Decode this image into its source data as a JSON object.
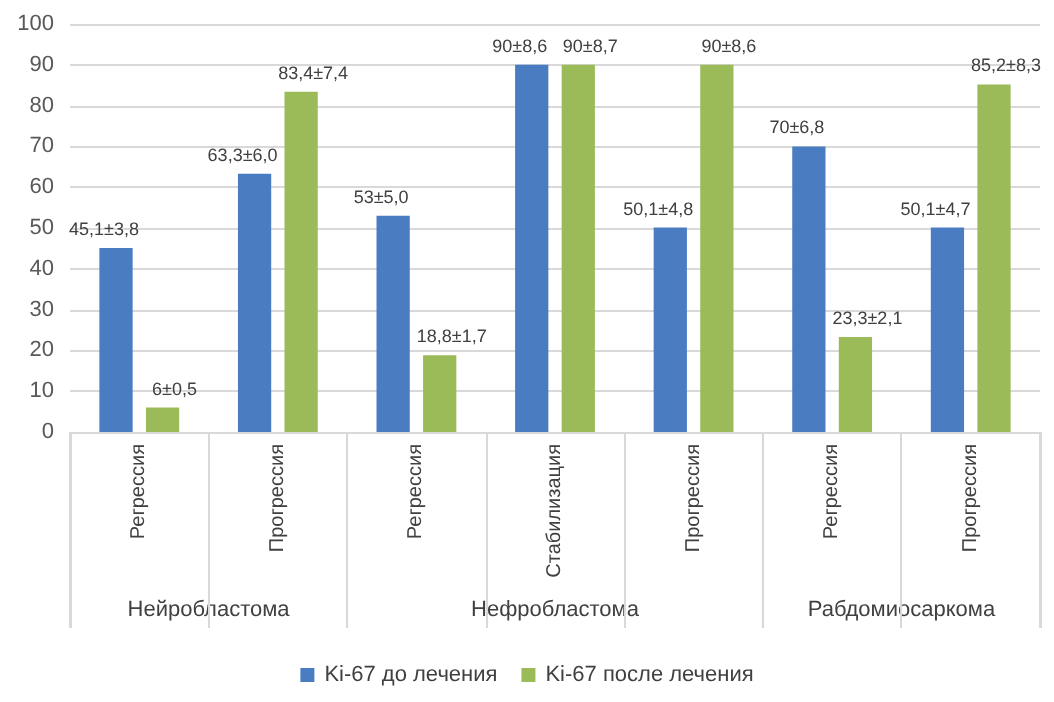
{
  "chart_data": {
    "type": "bar",
    "categories": [
      "Регрессия",
      "Прогрессия",
      "Регрессия",
      "Стабилизация",
      "Прогрессия",
      "Регрессия",
      "Прогрессия"
    ],
    "series": [
      {
        "name": "Ki-67 до лечения",
        "color": "#4a7cc1",
        "values": [
          45.1,
          63.3,
          53,
          90,
          50.1,
          70,
          50.1
        ],
        "value_labels": [
          "45,1±3,8",
          "63,3±6,0",
          "53±5,0",
          "90±8,6",
          "50,1±4,8",
          "70±6,8",
          "50,1±4,7"
        ]
      },
      {
        "name": "Ki-67 после лечения",
        "color": "#9bbb59",
        "values": [
          6,
          83.4,
          18.8,
          90,
          90,
          23.3,
          85.2
        ],
        "value_labels": [
          "6±0,5",
          "83,4±7,4",
          "18,8±1,7",
          "90±8,7",
          "90±8,6",
          "23,3±2,1",
          "85,2±8,3"
        ]
      }
    ],
    "annotations": [
      "Нейробластома",
      "Нефробластома",
      "Рабдомиосаркома"
    ],
    "ylim": [
      0,
      100
    ],
    "yticks": [
      0,
      10,
      20,
      30,
      40,
      50,
      60,
      70,
      80,
      90,
      100
    ],
    "grid": "y",
    "legend": "bottom"
  }
}
